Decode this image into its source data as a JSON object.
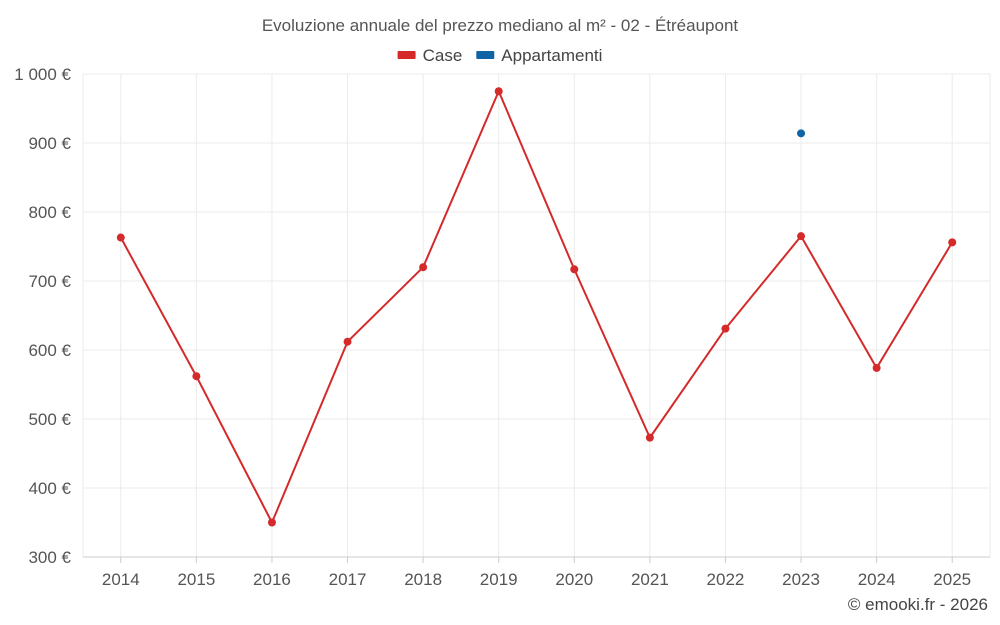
{
  "chart_data": {
    "type": "line",
    "title": "Evoluzione annuale del prezzo mediano al m² - 02 - Étréaupont",
    "categories": [
      "2014",
      "2015",
      "2016",
      "2017",
      "2018",
      "2019",
      "2020",
      "2021",
      "2022",
      "2023",
      "2024",
      "2025"
    ],
    "series": [
      {
        "name": "Case",
        "color": "#d42a2a",
        "values": [
          763,
          562,
          350,
          612,
          720,
          975,
          717,
          473,
          631,
          765,
          574,
          756
        ]
      },
      {
        "name": "Appartamenti",
        "color": "#1064a4",
        "values": [
          null,
          null,
          null,
          null,
          null,
          null,
          null,
          null,
          null,
          914,
          null,
          null
        ]
      }
    ],
    "ylim": [
      300,
      1000
    ],
    "yticks": [
      300,
      400,
      500,
      600,
      700,
      800,
      900,
      1000
    ],
    "ytick_labels": [
      "300 €",
      "400 €",
      "500 €",
      "600 €",
      "700 €",
      "800 €",
      "900 €",
      "1 000 €"
    ],
    "grid": true,
    "legend_position": "top-center",
    "xlabel": "",
    "ylabel": ""
  },
  "credit": "© emooki.fr - 2026"
}
